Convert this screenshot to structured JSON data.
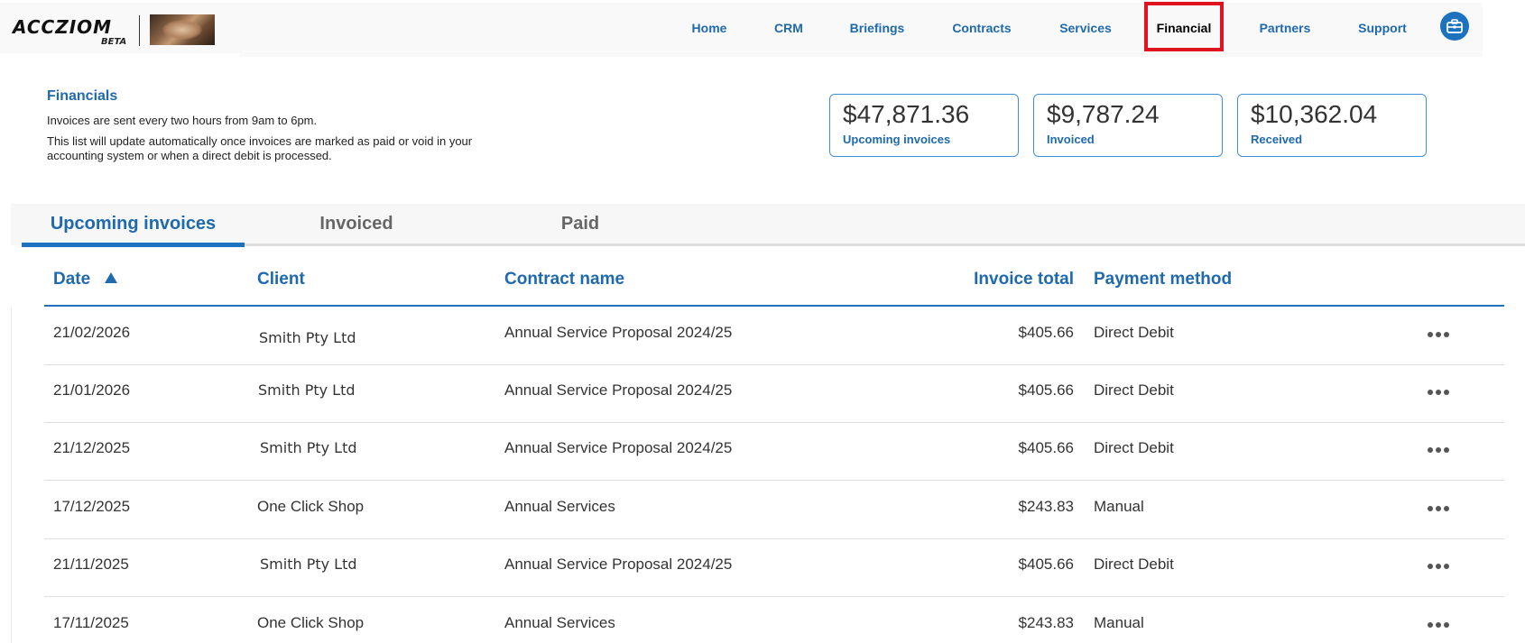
{
  "header": {
    "logo_text": "ACCZIOM",
    "logo_badge": "BETA",
    "nav": [
      {
        "label": "Home"
      },
      {
        "label": "CRM"
      },
      {
        "label": "Briefings"
      },
      {
        "label": "Contracts"
      },
      {
        "label": "Services"
      },
      {
        "label": "Financial",
        "active": true
      },
      {
        "label": "Partners"
      },
      {
        "label": "Support"
      }
    ],
    "user_icon": "briefcase-icon"
  },
  "financials": {
    "title": "Financials",
    "description_1": "Invoices are sent every two hours from 9am to 6pm.",
    "description_2": "This list will update automatically once invoices are marked as paid or void in your accounting system or when a direct debit is processed.",
    "cards": [
      {
        "value": "$47,871.36",
        "label": "Upcoming invoices"
      },
      {
        "value": "$9,787.24",
        "label": "Invoiced"
      },
      {
        "value": "$10,362.04",
        "label": "Received"
      }
    ]
  },
  "tabs": [
    {
      "label": "Upcoming invoices",
      "active": true
    },
    {
      "label": "Invoiced"
    },
    {
      "label": "Paid"
    }
  ],
  "table": {
    "columns": {
      "date": "Date",
      "client": "Client",
      "contract": "Contract name",
      "total": "Invoice total",
      "payment": "Payment method"
    },
    "sort_icon": "sort-ascending-icon",
    "rows": [
      {
        "date": "21/02/2026",
        "client": "Smith Pty Ltd",
        "contract": "Annual Service Proposal 2024/25",
        "total": "$405.66",
        "payment": "Direct Debit"
      },
      {
        "date": "21/01/2026",
        "client": "Smith Pty Ltd",
        "contract": "Annual Service Proposal 2024/25",
        "total": "$405.66",
        "payment": "Direct Debit"
      },
      {
        "date": "21/12/2025",
        "client": "Smith Pty Ltd",
        "contract": "Annual Service Proposal 2024/25",
        "total": "$405.66",
        "payment": "Direct Debit"
      },
      {
        "date": "17/12/2025",
        "client": "One Click Shop",
        "contract": "Annual Services",
        "total": "$243.83",
        "payment": "Manual"
      },
      {
        "date": "21/11/2025",
        "client": "Smith Pty Ltd",
        "contract": "Annual Service Proposal 2024/25",
        "total": "$405.66",
        "payment": "Direct Debit"
      },
      {
        "date": "17/11/2025",
        "client": "One Click Shop",
        "contract": "Annual Services",
        "total": "$243.83",
        "payment": "Manual"
      }
    ]
  },
  "colors": {
    "primary": "#1f69ad",
    "accent": "#1d72c0",
    "highlight": "#e0141e"
  }
}
